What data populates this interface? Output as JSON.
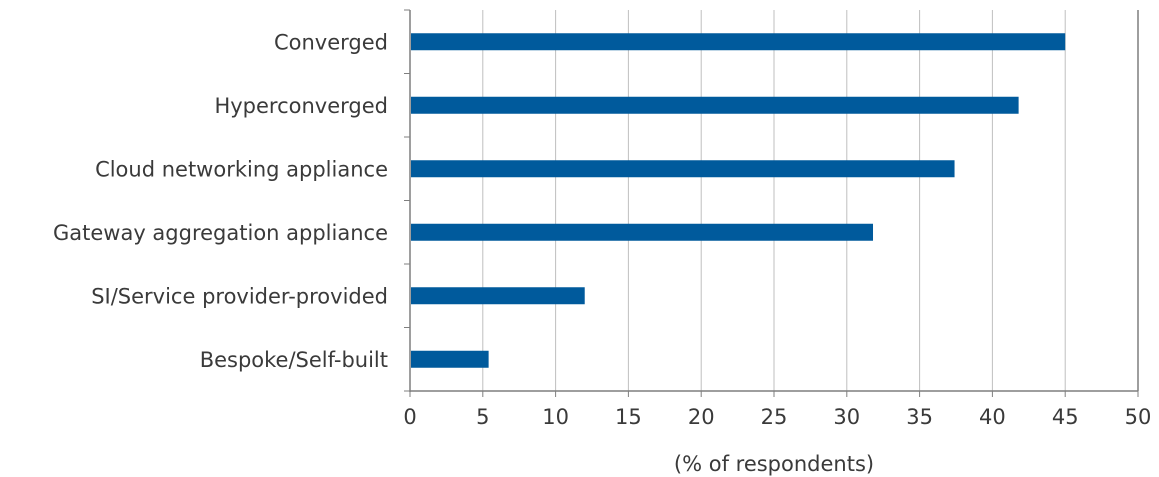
{
  "chart_data": {
    "type": "bar",
    "orientation": "horizontal",
    "categories": [
      "Converged",
      "Hyperconverged",
      "Cloud networking appliance",
      "Gateway aggregation appliance",
      "SI/Service provider-provided",
      "Bespoke/Self-built"
    ],
    "series": [
      {
        "values": [
          45.0,
          41.8,
          37.4,
          31.8,
          12.0,
          5.4
        ]
      }
    ],
    "xlabel": "(% of respondents)",
    "ylabel": "",
    "xlim": [
      0,
      50
    ],
    "xticks": [
      "0",
      "5",
      "10",
      "15",
      "20",
      "25",
      "30",
      "35",
      "40",
      "45",
      "50"
    ],
    "grid": "vertical",
    "legend": "none",
    "bar_color": "#005A9C",
    "grid_color": "#BFBFBF",
    "axis_color": "#7F7F7F"
  }
}
